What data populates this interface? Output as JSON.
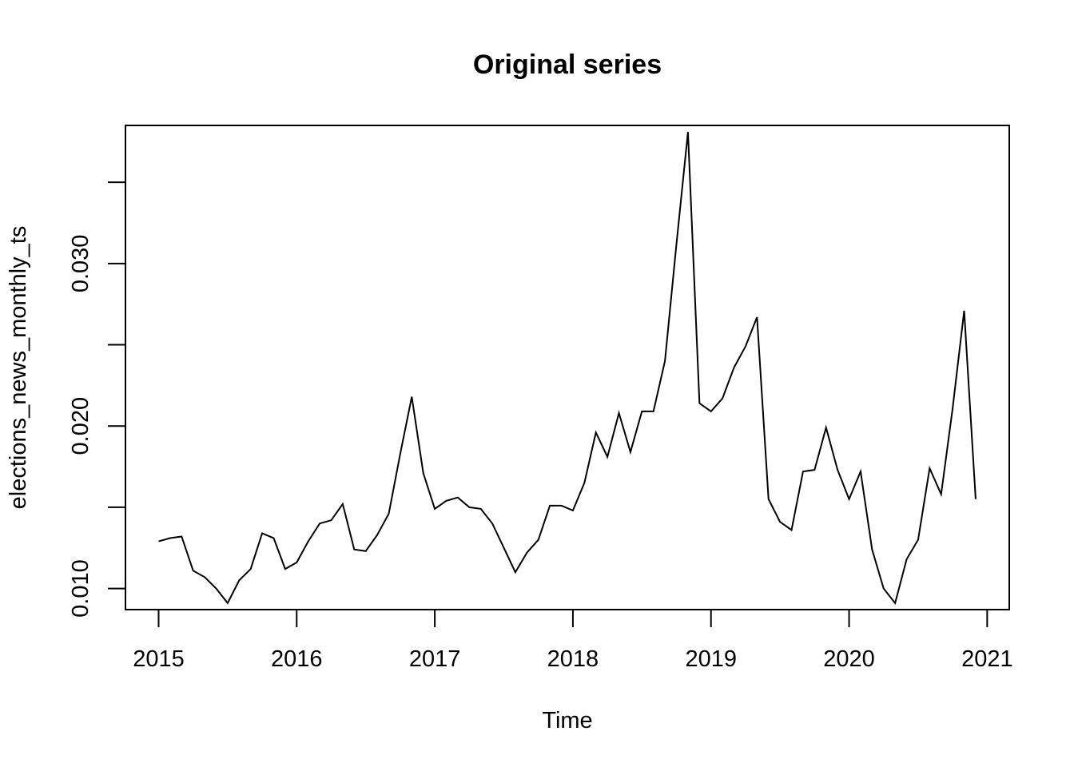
{
  "chart_data": {
    "type": "line",
    "title": "Original series",
    "xlabel": "Time",
    "ylabel": "elections_news_monthly_ts",
    "xlim": [
      2014.76,
      2021.16
    ],
    "ylim": [
      0.0087,
      0.0385
    ],
    "x_ticks": [
      2015,
      2016,
      2017,
      2018,
      2019,
      2020,
      2021
    ],
    "x_tick_labels": [
      "2015",
      "2016",
      "2017",
      "2018",
      "2019",
      "2020",
      "2021"
    ],
    "y_ticks": [
      0.01,
      0.015,
      0.02,
      0.025,
      0.03,
      0.035
    ],
    "y_tick_labels": [
      "0.010",
      "",
      "0.020",
      "",
      "0.030",
      ""
    ],
    "grid": false,
    "legend": "none",
    "start": 2015,
    "frequency": 12,
    "series": [
      {
        "values": [
          0.0129,
          0.0131,
          0.0132,
          0.0111,
          0.0107,
          0.01,
          0.0091,
          0.0105,
          0.0112,
          0.0134,
          0.0131,
          0.0112,
          0.0116,
          0.0129,
          0.014,
          0.0142,
          0.0152,
          0.0124,
          0.0123,
          0.0133,
          0.0146,
          0.0183,
          0.0218,
          0.0171,
          0.0149,
          0.0154,
          0.0156,
          0.015,
          0.0149,
          0.014,
          0.0125,
          0.011,
          0.0122,
          0.013,
          0.0151,
          0.0151,
          0.0148,
          0.0165,
          0.0196,
          0.0181,
          0.0208,
          0.0184,
          0.0209,
          0.0209,
          0.024,
          0.0312,
          0.0381,
          0.0214,
          0.0209,
          0.0217,
          0.0236,
          0.0249,
          0.0267,
          0.0155,
          0.0141,
          0.0136,
          0.0172,
          0.0173,
          0.0199,
          0.0173,
          0.0155,
          0.0172,
          0.0124,
          0.01,
          0.0091,
          0.0118,
          0.013,
          0.0174,
          0.0158,
          0.0211,
          0.0271,
          0.0155
        ]
      }
    ]
  }
}
